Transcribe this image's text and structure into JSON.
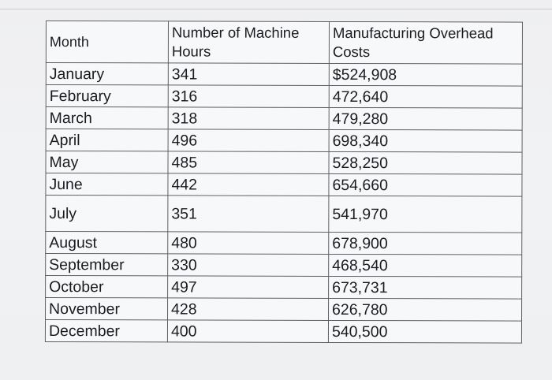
{
  "table": {
    "headers": [
      "Month",
      "Number of Machine Hours",
      "Manufacturing Overhead Costs"
    ],
    "rows": [
      [
        "January",
        "341",
        "$524,908"
      ],
      [
        "February",
        "316",
        "472,640"
      ],
      [
        "March",
        "318",
        "479,280"
      ],
      [
        "April",
        "496",
        "698,340"
      ],
      [
        "May",
        "485",
        "528,250"
      ],
      [
        "June",
        "442",
        "654,660"
      ],
      [
        "July",
        "351",
        "541,970"
      ],
      [
        "August",
        "480",
        "678,900"
      ],
      [
        "September",
        "330",
        "468,540"
      ],
      [
        "October",
        "497",
        "673,731"
      ],
      [
        "November",
        "428",
        "626,780"
      ],
      [
        "December",
        "400",
        "540,500"
      ]
    ]
  }
}
